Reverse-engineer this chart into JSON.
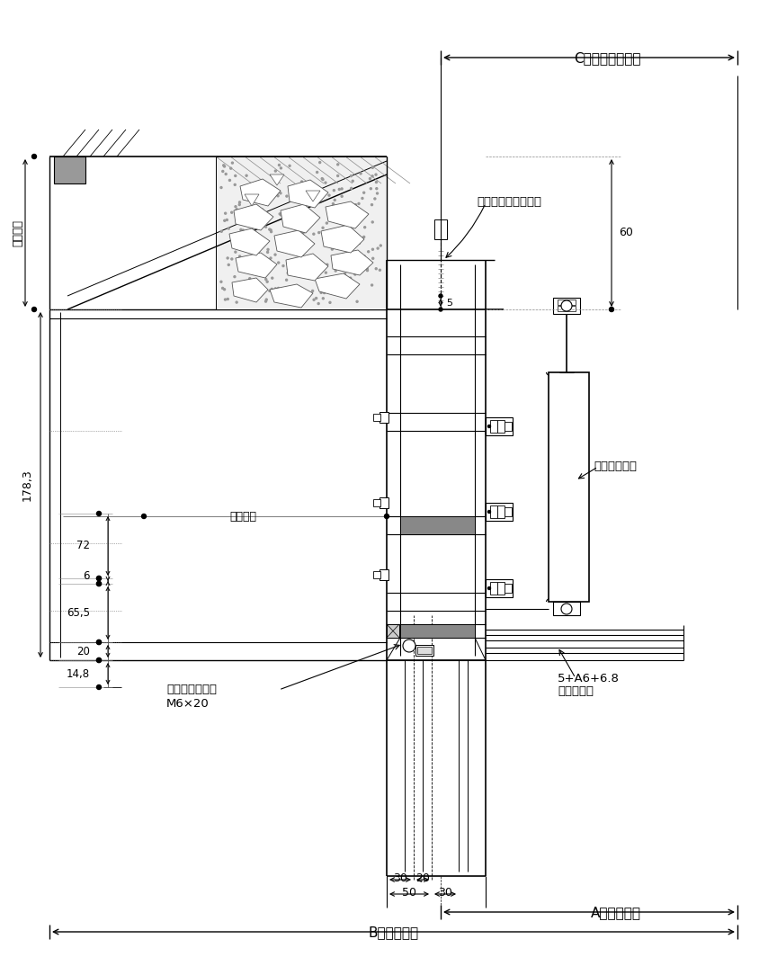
{
  "bg_color": "#ffffff",
  "annotations": {
    "B_label": "B：外形寸法",
    "A_label": "A：呼称寸法",
    "C_label": "C：仕上開口寸法",
    "label_50": "50",
    "label_30_top": "30",
    "label_30_sub": "30",
    "label_20": "20",
    "label_14_8": "14,8",
    "label_20_side": "20",
    "label_65_5": "65,5",
    "label_6": "6",
    "label_72": "72",
    "label_178_3": "178,3",
    "label_60": "60",
    "label_5": "5",
    "label_mono": "物件対応",
    "label_mono_v": "物件対応",
    "label_m6": "M6×20",
    "label_gomu": "ゴムパッキン付",
    "label_fukuso": "複層ガラス",
    "label_glass": "5+A6+6.8",
    "label_gas": "ガスダンパー",
    "label_finish": "仕上材（別途工事）"
  },
  "figsize": [
    8.64,
    10.74
  ],
  "dpi": 100
}
